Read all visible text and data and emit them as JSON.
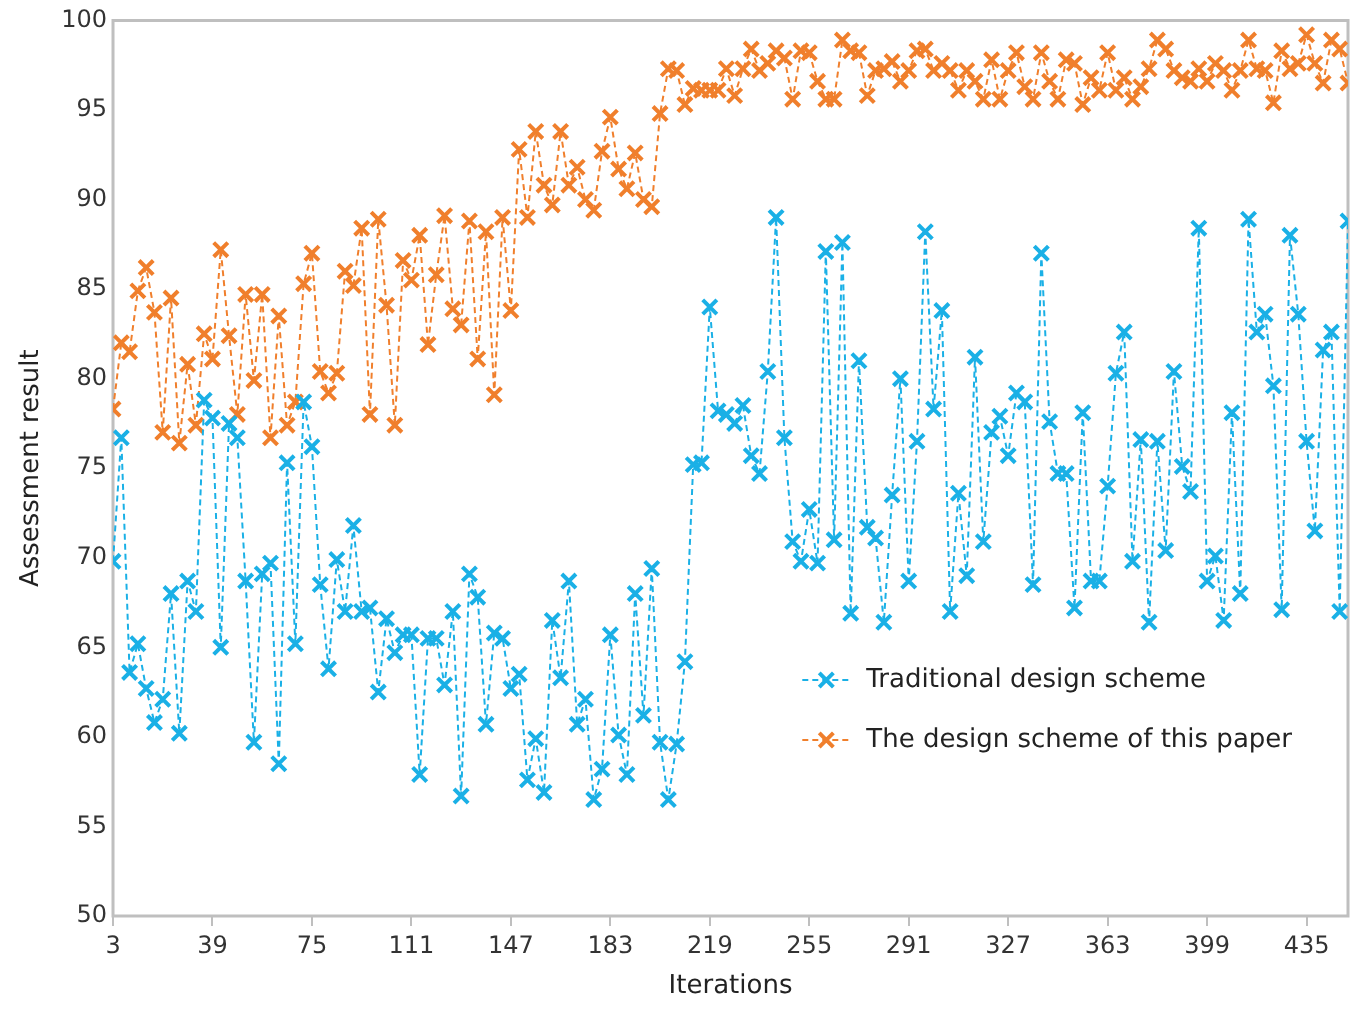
{
  "chart_data": {
    "type": "line",
    "xlabel": "Iterations",
    "ylabel": "Assessment result",
    "x": [
      3,
      6,
      9,
      12,
      15,
      18,
      21,
      24,
      27,
      30,
      33,
      36,
      39,
      42,
      45,
      48,
      51,
      54,
      57,
      60,
      63,
      66,
      69,
      72,
      75,
      78,
      81,
      84,
      87,
      90,
      93,
      96,
      99,
      102,
      105,
      108,
      111,
      114,
      117,
      120,
      123,
      126,
      129,
      132,
      135,
      138,
      141,
      144,
      147,
      150,
      153,
      156,
      159,
      162,
      165,
      168,
      171,
      174,
      177,
      180,
      183,
      186,
      189,
      192,
      195,
      198,
      201,
      204,
      207,
      210,
      213,
      216,
      219,
      222,
      225,
      228,
      231,
      234,
      237,
      240,
      243,
      246,
      249,
      252,
      255,
      258,
      261,
      264,
      267,
      270,
      273,
      276,
      279,
      282,
      285,
      288,
      291,
      294,
      297,
      300,
      303,
      306,
      309,
      312,
      315,
      318,
      321,
      324,
      327,
      330,
      333,
      336,
      339,
      342,
      345,
      348,
      351,
      354,
      357,
      360,
      363,
      366,
      369,
      372,
      375,
      378,
      381,
      384,
      387,
      390,
      393,
      396,
      399,
      402,
      405,
      408,
      411,
      414,
      417,
      420,
      423,
      426,
      429,
      432,
      435,
      438,
      441,
      444,
      447,
      450
    ],
    "series": [
      {
        "name": "Traditional design scheme",
        "color": "#1ab0e6",
        "values": [
          69.8,
          76.7,
          63.6,
          65.2,
          62.7,
          60.8,
          62.1,
          68.0,
          60.2,
          68.7,
          67.0,
          78.8,
          77.8,
          65.0,
          77.5,
          76.7,
          68.7,
          59.7,
          69.1,
          69.7,
          58.5,
          75.3,
          65.2,
          78.7,
          76.2,
          68.5,
          63.8,
          69.9,
          67.0,
          71.8,
          67.0,
          67.2,
          62.5,
          66.6,
          64.7,
          65.7,
          65.7,
          57.9,
          65.5,
          65.5,
          62.9,
          67.0,
          56.7,
          69.1,
          67.8,
          60.7,
          65.8,
          65.5,
          62.7,
          63.5,
          57.6,
          59.9,
          56.9,
          66.5,
          63.3,
          68.7,
          60.7,
          62.1,
          56.5,
          58.2,
          65.7,
          60.1,
          57.9,
          68.0,
          61.2,
          69.4,
          59.7,
          56.5,
          59.6,
          64.2,
          75.2,
          75.3,
          84.0,
          78.2,
          78.0,
          77.5,
          78.5,
          75.7,
          74.7,
          80.4,
          89.0,
          76.7,
          70.9,
          69.8,
          72.7,
          69.7,
          87.1,
          71.0,
          87.6,
          66.9,
          81.0,
          71.7,
          71.1,
          66.4,
          73.5,
          80.0,
          68.7,
          76.5,
          88.2,
          78.3,
          83.8,
          67.0,
          73.6,
          69.0,
          81.2,
          70.9,
          77.0,
          77.9,
          75.7,
          79.2,
          78.7,
          68.5,
          87.0,
          77.6,
          74.7,
          74.7,
          67.2,
          78.1,
          68.7,
          68.7,
          74.0,
          80.3,
          82.6,
          69.8,
          76.6,
          66.4,
          76.5,
          70.4,
          80.4,
          75.1,
          73.7,
          88.4,
          68.7,
          70.1,
          66.5,
          78.1,
          68.0,
          88.9,
          82.6,
          83.6,
          79.6,
          67.1,
          88.0,
          83.6,
          76.5,
          71.5,
          81.6,
          82.6,
          67.0,
          88.8
        ]
      },
      {
        "name": "The design scheme of this paper",
        "color": "#f07f2c",
        "values": [
          78.3,
          82.0,
          81.5,
          84.9,
          86.2,
          83.7,
          77.0,
          84.5,
          76.4,
          80.8,
          77.4,
          82.5,
          81.1,
          87.2,
          82.4,
          78.0,
          84.7,
          79.9,
          84.7,
          76.7,
          83.5,
          77.4,
          78.7,
          85.3,
          87.0,
          80.4,
          79.2,
          80.3,
          86.0,
          85.2,
          88.4,
          78.0,
          88.9,
          84.1,
          77.4,
          86.6,
          85.5,
          88.0,
          81.9,
          85.8,
          89.1,
          83.9,
          83.0,
          88.8,
          81.1,
          88.2,
          79.1,
          89.0,
          83.8,
          92.8,
          89.0,
          93.8,
          90.8,
          89.7,
          93.8,
          90.8,
          91.8,
          90.0,
          89.4,
          92.7,
          94.6,
          91.7,
          90.6,
          92.6,
          90.0,
          89.6,
          94.8,
          97.3,
          97.2,
          95.3,
          96.2,
          96.1,
          96.1,
          96.1,
          97.3,
          95.8,
          97.3,
          98.4,
          97.2,
          97.6,
          98.3,
          97.9,
          95.6,
          98.3,
          98.2,
          96.6,
          95.6,
          95.6,
          98.9,
          98.3,
          98.2,
          95.8,
          97.2,
          97.3,
          97.7,
          96.6,
          97.2,
          98.3,
          98.4,
          97.2,
          97.6,
          97.2,
          96.1,
          97.2,
          96.6,
          95.6,
          97.8,
          95.6,
          97.2,
          98.2,
          96.3,
          95.6,
          98.2,
          96.6,
          95.6,
          97.8,
          97.6,
          95.3,
          96.8,
          96.1,
          98.2,
          96.1,
          96.8,
          95.6,
          96.3,
          97.3,
          98.9,
          98.4,
          97.2,
          96.8,
          96.6,
          97.3,
          96.6,
          97.6,
          97.2,
          96.1,
          97.2,
          98.9,
          97.3,
          97.2,
          95.4,
          98.3,
          97.3,
          97.6,
          99.2,
          97.6,
          96.5,
          98.9,
          98.4,
          96.5
        ]
      }
    ],
    "xlim": [
      3,
      450
    ],
    "xticks": [
      3,
      39,
      75,
      111,
      147,
      183,
      219,
      255,
      291,
      327,
      363,
      399,
      435
    ],
    "ylim": [
      50,
      100
    ],
    "yticks": [
      50,
      55,
      60,
      65,
      70,
      75,
      80,
      85,
      90,
      95,
      100
    ],
    "grid": false,
    "legend": "right",
    "marker": "cross",
    "line_style": "dashed"
  }
}
